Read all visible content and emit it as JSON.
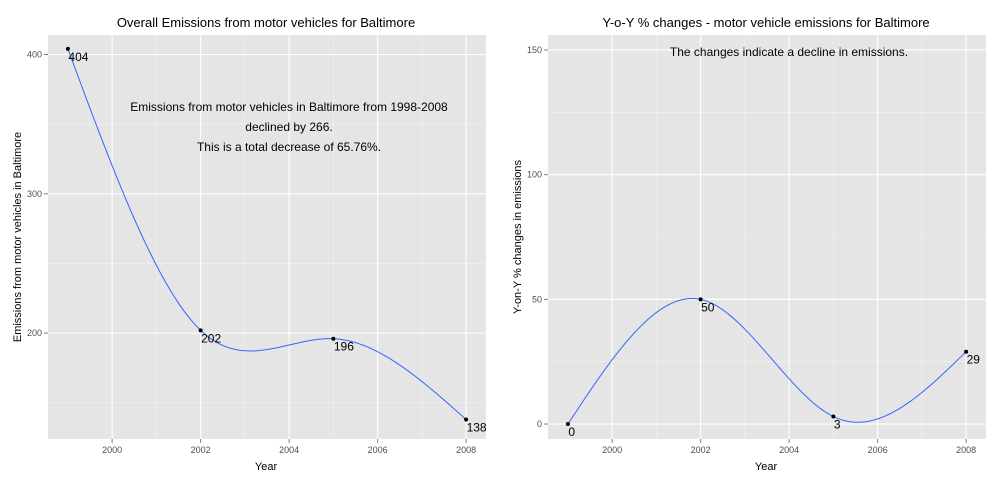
{
  "chart_data": [
    {
      "type": "line",
      "title": "Overall Emissions from motor vehicles for Baltimore",
      "xlabel": "Year",
      "ylabel": "Emissions from motor vehicles in Baltimore",
      "x": [
        1999,
        2002,
        2005,
        2008
      ],
      "values": [
        404,
        202,
        196,
        138
      ],
      "point_labels": [
        "404",
        "202",
        "196",
        "138"
      ],
      "xlim": [
        1998.55,
        2008.45
      ],
      "ylim": [
        124,
        414
      ],
      "x_ticks": [
        2000,
        2002,
        2004,
        2006,
        2008
      ],
      "x_tick_labels": [
        "2000",
        "2002",
        "2004",
        "2006",
        "2008"
      ],
      "y_ticks": [
        200,
        300,
        400
      ],
      "y_tick_labels": [
        "200",
        "300",
        "400"
      ],
      "annotation": [
        "Emissions from motor vehicles in Baltimore from 1998-2008",
        "declined by 266.",
        "This is a total decrease of 65.76%."
      ],
      "grid": true,
      "line_color": "#3366ff",
      "point_color": "#000000"
    },
    {
      "type": "line",
      "title": "Y-o-Y % changes - motor vehicle emissions for Baltimore",
      "xlabel": "Year",
      "ylabel": "Y-on-Y % changes in emissions",
      "x": [
        1999,
        2002,
        2005,
        2008
      ],
      "values": [
        0,
        50,
        3,
        29
      ],
      "point_labels": [
        "0",
        "50",
        "3",
        "29"
      ],
      "xlim": [
        1998.55,
        2008.45
      ],
      "ylim": [
        -6,
        156
      ],
      "x_ticks": [
        2000,
        2002,
        2004,
        2006,
        2008
      ],
      "x_tick_labels": [
        "2000",
        "2002",
        "2004",
        "2006",
        "2008"
      ],
      "y_ticks": [
        0,
        50,
        100,
        150
      ],
      "y_tick_labels": [
        "0",
        "50",
        "100",
        "150"
      ],
      "annotation": [
        "The changes indicate a decline in emissions."
      ],
      "grid": true,
      "line_color": "#3366ff",
      "point_color": "#000000"
    }
  ]
}
